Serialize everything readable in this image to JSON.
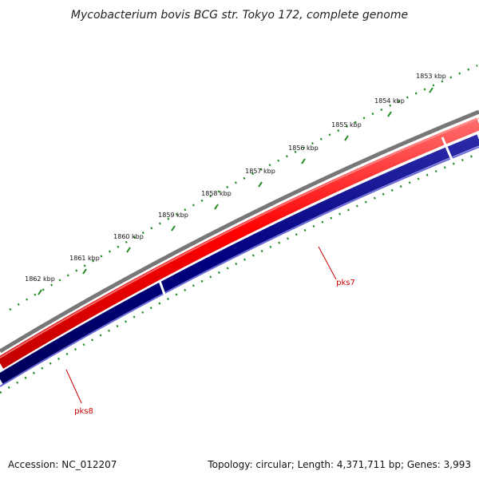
{
  "title": "Mycobacterium bovis BCG str. Tokyo 172, complete genome",
  "footer": {
    "accession": "Accession: NC_012207",
    "summary": "Topology: circular; Length: 4,371,711 bp; Genes: 3,993"
  },
  "ticks": [
    "1853 kbp",
    "1854 kbp",
    "1855 kbp",
    "1856 kbp",
    "1857 kbp",
    "1858 kbp",
    "1859 kbp",
    "1860 kbp",
    "1861 kbp",
    "1862 kbp"
  ],
  "genes": [
    {
      "name": "pks7",
      "strand": "forward",
      "color": "#ff0000"
    },
    {
      "name": "pks8",
      "strand": "forward",
      "color": "#ff0000"
    }
  ],
  "colors": {
    "forward_strand": "#ff0000",
    "reverse_strand": "#000080",
    "backbone": "#808080",
    "ticks": "#228b22",
    "label": "#cc0000"
  }
}
